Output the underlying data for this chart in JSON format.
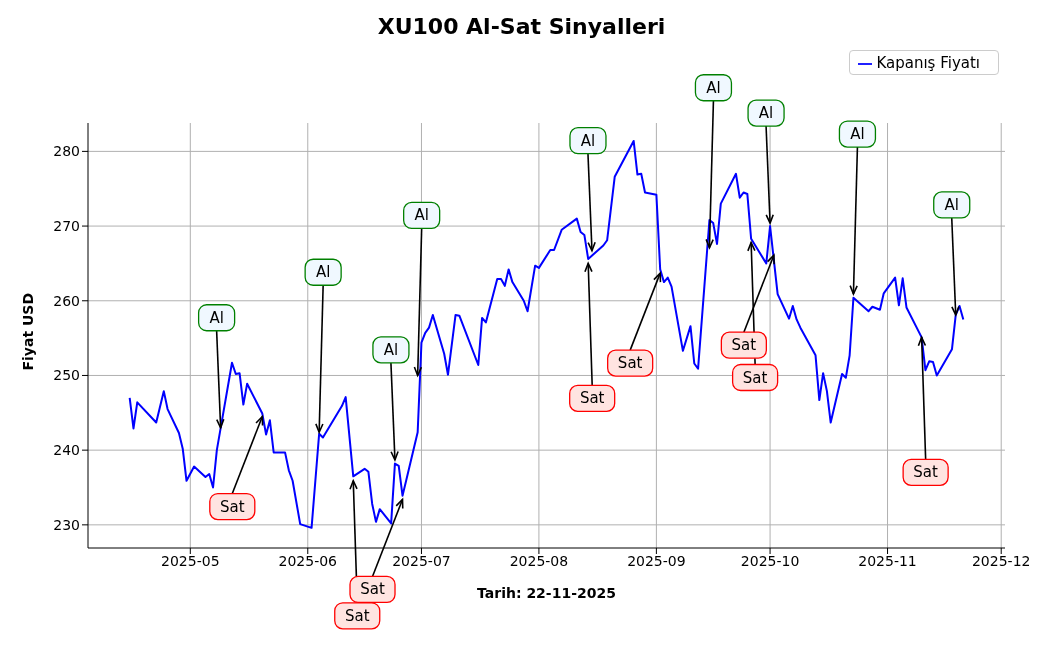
{
  "chart_data": {
    "type": "line",
    "title": "XU100 Al-Sat Sinyalleri",
    "xlabel": "Tarih: 22-11-2025",
    "ylabel": "Fiyat USD",
    "x": [
      "2025-04-15",
      "2025-04-16",
      "2025-04-17",
      "2025-04-22",
      "2025-04-24",
      "2025-04-25",
      "2025-04-28",
      "2025-04-29",
      "2025-04-30",
      "2025-05-02",
      "2025-05-05",
      "2025-05-06",
      "2025-05-07",
      "2025-05-08",
      "2025-05-12",
      "2025-05-13",
      "2025-05-14",
      "2025-05-15",
      "2025-05-16",
      "2025-05-20",
      "2025-05-21",
      "2025-05-22",
      "2025-05-23",
      "2025-05-26",
      "2025-05-27",
      "2025-05-28",
      "2025-05-30",
      "2025-06-02",
      "2025-06-04",
      "2025-06-05",
      "2025-06-10",
      "2025-06-11",
      "2025-06-13",
      "2025-06-16",
      "2025-06-17",
      "2025-06-18",
      "2025-06-19",
      "2025-06-20",
      "2025-06-23",
      "2025-06-24",
      "2025-06-25",
      "2025-06-26",
      "2025-06-27",
      "2025-06-30",
      "2025-07-01",
      "2025-07-02",
      "2025-07-03",
      "2025-07-04",
      "2025-07-07",
      "2025-07-08",
      "2025-07-10",
      "2025-07-11",
      "2025-07-16",
      "2025-07-17",
      "2025-07-18",
      "2025-07-21",
      "2025-07-22",
      "2025-07-23",
      "2025-07-24",
      "2025-07-25",
      "2025-07-28",
      "2025-07-29",
      "2025-07-31",
      "2025-08-01",
      "2025-08-04",
      "2025-08-05",
      "2025-08-07",
      "2025-08-11",
      "2025-08-12",
      "2025-08-13",
      "2025-08-14",
      "2025-08-18",
      "2025-08-19",
      "2025-08-21",
      "2025-08-26",
      "2025-08-27",
      "2025-08-28",
      "2025-08-29",
      "2025-09-01",
      "2025-09-02",
      "2025-09-03",
      "2025-09-04",
      "2025-09-05",
      "2025-09-08",
      "2025-09-10",
      "2025-09-11",
      "2025-09-12",
      "2025-09-15",
      "2025-09-16",
      "2025-09-17",
      "2025-09-18",
      "2025-09-22",
      "2025-09-23",
      "2025-09-24",
      "2025-09-25",
      "2025-09-26",
      "2025-09-30",
      "2025-10-01",
      "2025-10-03",
      "2025-10-06",
      "2025-10-07",
      "2025-10-08",
      "2025-10-09",
      "2025-10-13",
      "2025-10-14",
      "2025-10-15",
      "2025-10-16",
      "2025-10-17",
      "2025-10-20",
      "2025-10-21",
      "2025-10-22",
      "2025-10-23",
      "2025-10-27",
      "2025-10-28",
      "2025-10-30",
      "2025-10-31",
      "2025-11-03",
      "2025-11-04",
      "2025-11-05",
      "2025-11-06",
      "2025-11-10",
      "2025-11-11",
      "2025-11-12",
      "2025-11-13",
      "2025-11-14",
      "2025-11-18",
      "2025-11-19",
      "2025-11-20",
      "2025-11-21"
    ],
    "series": [
      {
        "name": "Kapanış Fiyatı",
        "color": "#0000ff",
        "values": [
          247.0,
          242.9,
          246.4,
          243.7,
          247.9,
          245.5,
          242.3,
          240.2,
          235.9,
          237.8,
          236.4,
          236.8,
          235.0,
          240.0,
          251.7,
          250.2,
          250.3,
          246.1,
          248.9,
          244.9,
          242.1,
          244.0,
          239.7,
          239.7,
          237.3,
          235.9,
          230.1,
          229.6,
          242.2,
          241.7,
          245.9,
          247.1,
          236.5,
          237.5,
          237.1,
          232.8,
          230.4,
          232.1,
          230.2,
          238.2,
          237.9,
          233.9,
          236.0,
          242.4,
          254.4,
          255.7,
          256.4,
          258.1,
          252.9,
          250.1,
          258.1,
          258.0,
          251.4,
          257.7,
          257.1,
          262.9,
          262.9,
          262.0,
          264.2,
          262.5,
          260.0,
          258.6,
          264.7,
          264.4,
          266.8,
          266.8,
          269.5,
          271.0,
          269.2,
          268.8,
          265.6,
          267.4,
          268.1,
          276.6,
          281.4,
          276.9,
          277.0,
          274.5,
          274.2,
          264.2,
          262.5,
          263.1,
          261.9,
          253.3,
          256.6,
          251.6,
          250.9,
          270.8,
          270.4,
          267.6,
          273.0,
          277.0,
          273.8,
          274.5,
          274.3,
          268.3,
          265.0,
          270.0,
          260.9,
          257.6,
          259.3,
          257.5,
          256.4,
          252.7,
          246.7,
          250.3,
          247.9,
          243.7,
          250.2,
          249.7,
          252.7,
          260.4,
          258.6,
          259.2,
          258.8,
          261.0,
          263.1,
          259.4,
          263.0,
          259.1,
          255.1,
          250.7,
          251.9,
          251.8,
          250.0,
          253.5,
          258.1,
          259.3,
          257.5
        ]
      }
    ],
    "xlim": [
      "2025-04-04",
      "2025-12-02"
    ],
    "xticks": [
      {
        "value": "2025-05-01",
        "label": "2025-05"
      },
      {
        "value": "2025-06-01",
        "label": "2025-06"
      },
      {
        "value": "2025-07-01",
        "label": "2025-07"
      },
      {
        "value": "2025-08-01",
        "label": "2025-08"
      },
      {
        "value": "2025-09-01",
        "label": "2025-09"
      },
      {
        "value": "2025-10-01",
        "label": "2025-10"
      },
      {
        "value": "2025-11-01",
        "label": "2025-11"
      },
      {
        "value": "2025-12-01",
        "label": "2025-12"
      }
    ],
    "ylim": [
      226.9,
      283.8
    ],
    "yticks": [
      230,
      240,
      250,
      260,
      270,
      280
    ],
    "grid": true,
    "legend": "top right",
    "marker": "none",
    "line_style": "solid",
    "annotations": [
      {
        "text": "Al",
        "x": "2025-05-09",
        "y": 243.0
      },
      {
        "text": "Al",
        "x": "2025-06-04",
        "y": 242.4
      },
      {
        "text": "Al",
        "x": "2025-06-24",
        "y": 238.7
      },
      {
        "text": "Al",
        "x": "2025-06-30",
        "y": 250.0
      },
      {
        "text": "Al",
        "x": "2025-08-15",
        "y": 266.7
      },
      {
        "text": "Al",
        "x": "2025-09-15",
        "y": 267.1
      },
      {
        "text": "Al",
        "x": "2025-10-01",
        "y": 270.4
      },
      {
        "text": "Al",
        "x": "2025-10-23",
        "y": 260.9
      },
      {
        "text": "Al",
        "x": "2025-11-19",
        "y": 258.1
      },
      {
        "text": "Sat",
        "x": "2025-05-20",
        "y": 244.5
      },
      {
        "text": "Sat",
        "x": "2025-06-13",
        "y": 235.9
      },
      {
        "text": "Sat",
        "x": "2025-06-26",
        "y": 233.4
      },
      {
        "text": "Sat",
        "x": "2025-08-14",
        "y": 265.0
      },
      {
        "text": "Sat",
        "x": "2025-09-02",
        "y": 263.7
      },
      {
        "text": "Sat",
        "x": "2025-09-26",
        "y": 267.8
      },
      {
        "text": "Sat",
        "x": "2025-10-02",
        "y": 266.1
      },
      {
        "text": "Sat",
        "x": "2025-11-10",
        "y": 255.1
      }
    ]
  }
}
